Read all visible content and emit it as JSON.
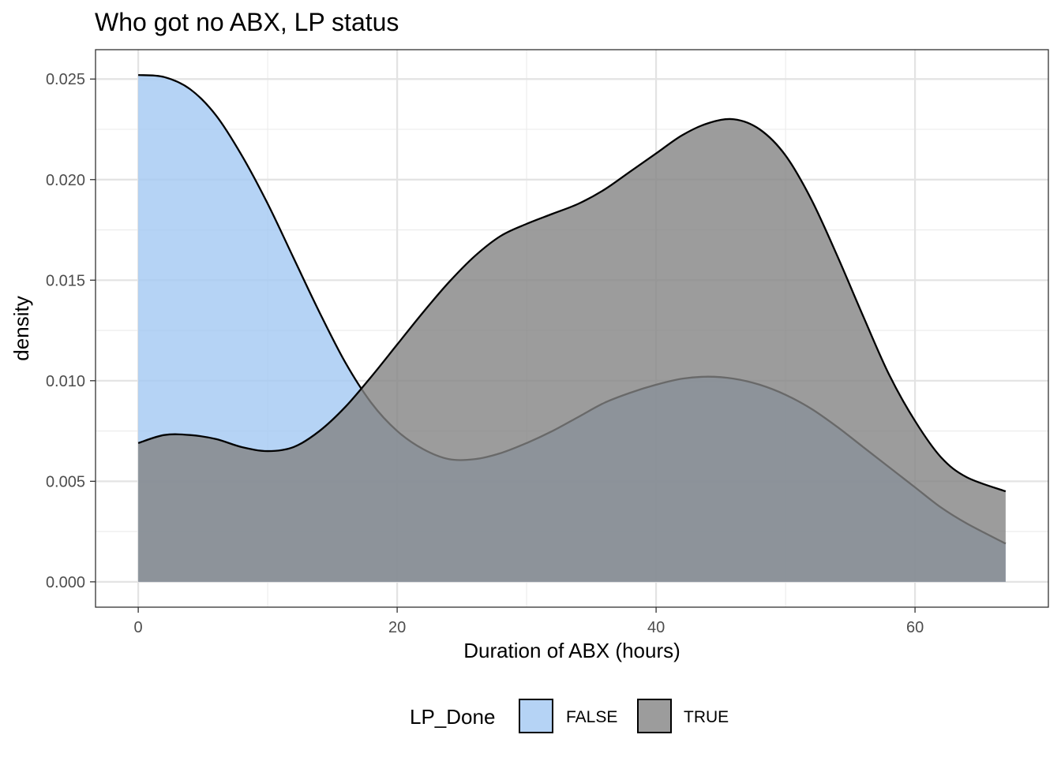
{
  "chart_data": {
    "type": "area",
    "title": "Who got no ABX, LP status",
    "xlabel": "Duration of ABX (hours)",
    "ylabel": "density",
    "xlim": [
      -3.3,
      70.3
    ],
    "ylim": [
      -0.00126,
      0.02646
    ],
    "x_ticks": [
      0,
      20,
      40,
      60
    ],
    "x_tick_labels": [
      "0",
      "20",
      "40",
      "60"
    ],
    "y_ticks": [
      0,
      0.005,
      0.01,
      0.015,
      0.02,
      0.025
    ],
    "y_tick_labels": [
      "0.000",
      "0.005",
      "0.010",
      "0.015",
      "0.020",
      "0.025"
    ],
    "grid": true,
    "legend": {
      "title": "LP_Done",
      "position": "bottom"
    },
    "series": [
      {
        "name": "FALSE",
        "color": "#a3c8f3",
        "x": [
          0,
          2,
          4,
          6,
          8,
          10,
          12,
          14,
          16,
          18,
          20,
          22,
          24,
          26,
          28,
          30,
          32,
          34,
          36,
          38,
          40,
          42,
          44,
          46,
          48,
          50,
          52,
          54,
          56,
          58,
          60,
          62,
          64,
          67
        ],
        "values": [
          0.0252,
          0.0251,
          0.0245,
          0.0232,
          0.0212,
          0.0188,
          0.0161,
          0.0134,
          0.0109,
          0.0089,
          0.0075,
          0.0066,
          0.0061,
          0.0061,
          0.0064,
          0.0069,
          0.0075,
          0.0082,
          0.0089,
          0.0094,
          0.0098,
          0.0101,
          0.0102,
          0.0101,
          0.0098,
          0.0093,
          0.0086,
          0.0077,
          0.0067,
          0.0057,
          0.0047,
          0.0037,
          0.0029,
          0.0019
        ]
      },
      {
        "name": "TRUE",
        "color": "#838383",
        "x": [
          0,
          2,
          4,
          6,
          8,
          10,
          12,
          14,
          16,
          18,
          20,
          22,
          24,
          26,
          28,
          30,
          32,
          34,
          36,
          38,
          40,
          42,
          44,
          46,
          48,
          50,
          52,
          54,
          56,
          58,
          60,
          62,
          64,
          67
        ],
        "values": [
          0.0069,
          0.0073,
          0.0073,
          0.0071,
          0.0067,
          0.0065,
          0.0067,
          0.0075,
          0.0087,
          0.0102,
          0.0118,
          0.0134,
          0.0149,
          0.0162,
          0.0172,
          0.0178,
          0.0183,
          0.0188,
          0.0195,
          0.0204,
          0.0213,
          0.0222,
          0.0228,
          0.023,
          0.0225,
          0.0212,
          0.019,
          0.0162,
          0.0132,
          0.0103,
          0.008,
          0.0062,
          0.0052,
          0.0045
        ]
      }
    ]
  }
}
